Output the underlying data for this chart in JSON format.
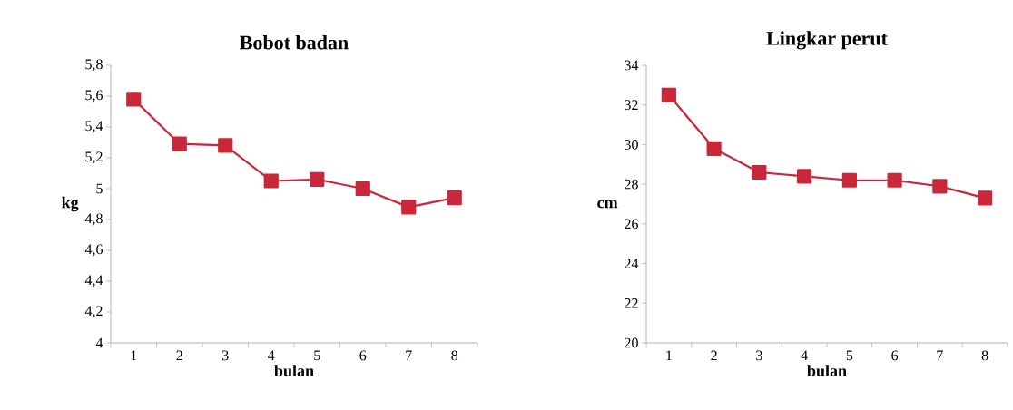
{
  "chart_data": [
    {
      "type": "line",
      "title": "Bobot badan",
      "xlabel": "bulan",
      "ylabel": "kg",
      "categories": [
        "1",
        "2",
        "3",
        "4",
        "5",
        "6",
        "7",
        "8"
      ],
      "marker": "square",
      "line_style": "solid",
      "series": [
        {
          "color": "#c8283a",
          "values": [
            5.58,
            5.29,
            5.28,
            5.05,
            5.06,
            5.0,
            4.88,
            4.94
          ]
        }
      ],
      "ylim": [
        4,
        5.8
      ],
      "yticks": [
        4,
        {
          "value": 4.2,
          "label": "4,2"
        },
        {
          "value": 4.4,
          "label": "4,4"
        },
        {
          "value": 4.6,
          "label": "4,6"
        },
        {
          "value": 4.8,
          "label": "4,8"
        },
        5,
        {
          "value": 5.2,
          "label": "5,2"
        },
        {
          "value": 5.4,
          "label": "5,4"
        },
        {
          "value": 5.6,
          "label": "5,6"
        },
        {
          "value": 5.8,
          "label": "5,8"
        }
      ]
    },
    {
      "type": "line",
      "title": "Lingkar perut",
      "xlabel": "bulan",
      "ylabel": "cm",
      "categories": [
        "1",
        "2",
        "3",
        "4",
        "5",
        "6",
        "7",
        "8"
      ],
      "marker": "square",
      "line_style": "solid",
      "series": [
        {
          "color": "#c8283a",
          "values": [
            32.5,
            29.8,
            28.6,
            28.4,
            28.2,
            28.2,
            27.9,
            27.3
          ]
        }
      ],
      "ylim": [
        20,
        34
      ],
      "yticks": [
        20,
        22,
        24,
        26,
        28,
        30,
        32,
        34
      ]
    }
  ]
}
